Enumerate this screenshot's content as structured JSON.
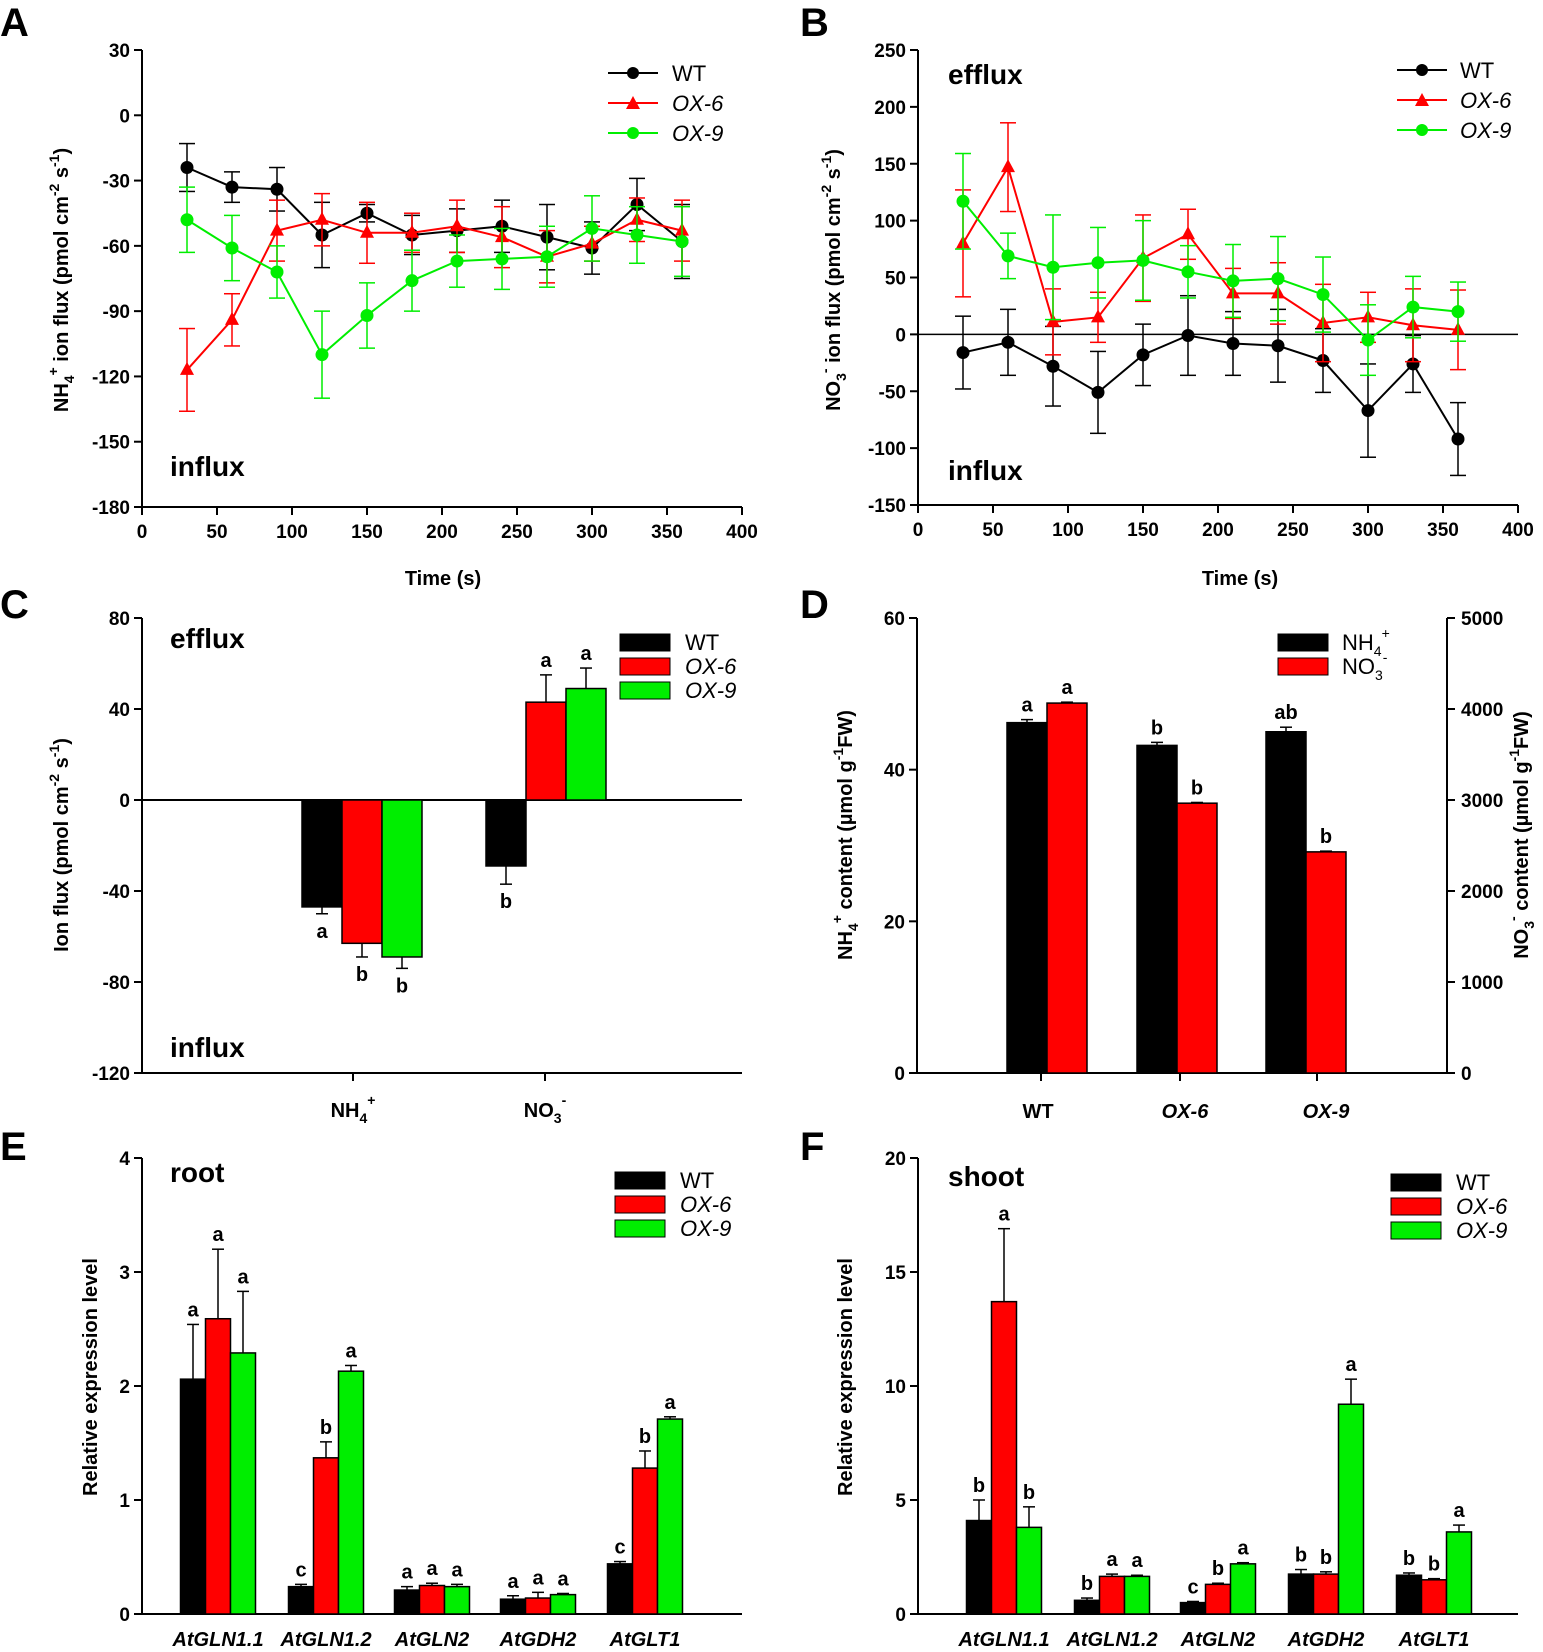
{
  "chart_data": [
    {
      "panel": "A",
      "type": "line",
      "xlabel": "Time (s)",
      "ylabel": "NH4+ ion flux (pmol cm-2 s-1)",
      "ylabel_parts": {
        "a": "NH",
        "b": "4",
        "c": "+",
        "d": " ion flux (pmol cm",
        "e": "-2",
        "f": " s",
        "g": "-1",
        "h": ")"
      },
      "xlim": [
        0,
        400
      ],
      "ylim": [
        -180,
        30
      ],
      "xticks": [
        0,
        50,
        100,
        150,
        200,
        250,
        300,
        350,
        400
      ],
      "yticks": [
        -180,
        -150,
        -120,
        -90,
        -60,
        -30,
        0,
        30
      ],
      "annotations": [
        "influx"
      ],
      "x": [
        30,
        60,
        90,
        120,
        150,
        180,
        210,
        240,
        270,
        300,
        330,
        360
      ],
      "series": [
        {
          "name": "WT",
          "color": "#000000",
          "marker": "circle",
          "values": [
            -24,
            -33,
            -34,
            -55,
            -45,
            -55,
            -53,
            -51,
            -56,
            -61,
            -41,
            -58
          ],
          "errors": [
            11,
            7,
            10,
            15,
            4,
            9,
            10,
            12,
            15,
            12,
            12,
            17
          ]
        },
        {
          "name": "OX-6",
          "color": "#ff0000",
          "marker": "triangle",
          "values": [
            -117,
            -94,
            -53,
            -48,
            -54,
            -54,
            -51,
            -56,
            -65,
            -59,
            -48,
            -53
          ],
          "errors": [
            19,
            12,
            14,
            12,
            14,
            9,
            12,
            14,
            12,
            8,
            10,
            14
          ]
        },
        {
          "name": "OX-9",
          "color": "#00ee00",
          "marker": "circle",
          "values": [
            -48,
            -61,
            -72,
            -110,
            -92,
            -76,
            -67,
            -66,
            -65,
            -52,
            -55,
            -58
          ],
          "errors": [
            15,
            15,
            12,
            20,
            15,
            14,
            12,
            14,
            14,
            15,
            13,
            16
          ]
        }
      ]
    },
    {
      "panel": "B",
      "type": "line",
      "xlabel": "Time (s)",
      "ylabel": "NO3- ion flux (pmol cm-2 s-1)",
      "ylabel_parts": {
        "a": "NO",
        "b": "3",
        "c": "-",
        "d": " ion flux (pmol cm",
        "e": "-2",
        "f": " s",
        "g": "-1",
        "h": ")"
      },
      "xlim": [
        0,
        400
      ],
      "ylim": [
        -150,
        250
      ],
      "xticks": [
        0,
        50,
        100,
        150,
        200,
        250,
        300,
        350,
        400
      ],
      "yticks": [
        -150,
        -100,
        -50,
        0,
        50,
        100,
        150,
        200,
        250
      ],
      "annotations": [
        "efflux",
        "influx"
      ],
      "x": [
        30,
        60,
        90,
        120,
        150,
        180,
        210,
        240,
        270,
        300,
        330,
        360
      ],
      "series": [
        {
          "name": "WT",
          "color": "#000000",
          "marker": "circle",
          "values": [
            -16,
            -7,
            -28,
            -51,
            -18,
            -1,
            -8,
            -10,
            -23,
            -67,
            -26,
            -92
          ],
          "errors": [
            32,
            29,
            35,
            36,
            27,
            35,
            28,
            32,
            28,
            41,
            25,
            32
          ]
        },
        {
          "name": "OX-6",
          "color": "#ff0000",
          "marker": "triangle",
          "values": [
            80,
            147,
            11,
            15,
            67,
            88,
            36,
            36,
            10,
            15,
            8,
            4
          ],
          "errors": [
            47,
            39,
            29,
            22,
            38,
            22,
            22,
            27,
            34,
            22,
            32,
            35
          ]
        },
        {
          "name": "OX-9",
          "color": "#00ee00",
          "marker": "circle",
          "values": [
            117,
            69,
            59,
            63,
            65,
            55,
            47,
            49,
            35,
            -5,
            24,
            20
          ],
          "errors": [
            42,
            20,
            46,
            31,
            35,
            23,
            32,
            37,
            33,
            31,
            27,
            26
          ]
        }
      ]
    },
    {
      "panel": "C",
      "type": "bar",
      "ylabel": "Ion flux (pmol cm-2 s-1)",
      "ylabel_parts": {
        "a": "Ion flux (pmol cm",
        "b": "-2",
        "c": " s",
        "d": "-1",
        "e": ")"
      },
      "ylim": [
        -120,
        80
      ],
      "yticks": [
        -120,
        -80,
        -40,
        0,
        40,
        80
      ],
      "categories": [
        "NH4+",
        "NO3-"
      ],
      "category_parts": [
        {
          "base": "NH",
          "sub": "4",
          "sup": "+"
        },
        {
          "base": "NO",
          "sub": "3",
          "sup": "-"
        }
      ],
      "annotations": [
        "efflux",
        "influx"
      ],
      "series": [
        {
          "name": "WT",
          "color": "#000000",
          "values": [
            -47,
            -29
          ],
          "errors": [
            3,
            8
          ],
          "sig": [
            "a",
            "b"
          ]
        },
        {
          "name": "OX-6",
          "color": "#ff0000",
          "values": [
            -63,
            43
          ],
          "errors": [
            6,
            12
          ],
          "sig": [
            "b",
            "a"
          ]
        },
        {
          "name": "OX-9",
          "color": "#00ee00",
          "values": [
            -69,
            49
          ],
          "errors": [
            5,
            9
          ],
          "sig": [
            "b",
            "a"
          ]
        }
      ]
    },
    {
      "panel": "D",
      "type": "bar",
      "ylabel": "NH4+ content (µmol g-1FW)",
      "ylabel_parts": {
        "a": "NH",
        "b": "4",
        "c": "+",
        "d": " content (µmol  g",
        "e": "-1",
        "f": "FW)"
      },
      "ylabel_right": "NO3- content (µmol g-1FW)",
      "ylabel_right_parts": {
        "a": "NO",
        "b": "3",
        "c": "-",
        "d": " content (µmol  g",
        "e": "-1",
        "f": "FW)"
      },
      "ylim": [
        0,
        60
      ],
      "ylim_right": [
        0,
        5000
      ],
      "yticks": [
        0,
        20,
        40,
        60
      ],
      "yticks_right": [
        0,
        1000,
        2000,
        3000,
        4000,
        5000
      ],
      "categories": [
        "WT",
        "OX-6",
        "OX-9"
      ],
      "legend_parts": [
        {
          "base": "NH",
          "sub": "4",
          "sup": "+"
        },
        {
          "base": "NO",
          "sub": "3",
          "sup": "-"
        }
      ],
      "series": [
        {
          "name": "NH4+",
          "axis": "left",
          "color": "#000000",
          "values": [
            46.2,
            43.2,
            45.0
          ],
          "errors": [
            0.4,
            0.4,
            0.6
          ],
          "sig": [
            "a",
            "b",
            "ab"
          ]
        },
        {
          "name": "NO3-",
          "axis": "right",
          "color": "#ff0000",
          "values": [
            4065,
            2965,
            2430
          ],
          "errors": [
            10,
            8,
            8
          ],
          "sig": [
            "a",
            "b",
            "b"
          ]
        }
      ]
    },
    {
      "panel": "E",
      "type": "bar",
      "title": "root",
      "ylabel": "Relative expression level",
      "ylim": [
        0,
        4
      ],
      "yticks": [
        0,
        1,
        2,
        3,
        4
      ],
      "categories": [
        "AtGLN1.1",
        "AtGLN1.2",
        "AtGLN2",
        "AtGDH2",
        "AtGLT1"
      ],
      "series": [
        {
          "name": "WT",
          "color": "#000000",
          "values": [
            2.06,
            0.24,
            0.21,
            0.13,
            0.44
          ],
          "errors": [
            0.48,
            0.02,
            0.03,
            0.03,
            0.02
          ],
          "sig": [
            "a",
            "c",
            "a",
            "a",
            "c"
          ]
        },
        {
          "name": "OX-6",
          "color": "#ff0000",
          "values": [
            2.59,
            1.37,
            0.25,
            0.14,
            1.28
          ],
          "errors": [
            0.61,
            0.14,
            0.02,
            0.05,
            0.15
          ],
          "sig": [
            "a",
            "b",
            "a",
            "a",
            "b"
          ]
        },
        {
          "name": "OX-9",
          "color": "#00ee00",
          "values": [
            2.29,
            2.13,
            0.24,
            0.17,
            1.71
          ],
          "errors": [
            0.54,
            0.05,
            0.02,
            0.01,
            0.02
          ],
          "sig": [
            "a",
            "a",
            "a",
            "a",
            "a"
          ]
        }
      ]
    },
    {
      "panel": "F",
      "type": "bar",
      "title": "shoot",
      "ylabel": "Relative expression level",
      "ylim": [
        0,
        20
      ],
      "yticks": [
        0,
        5,
        10,
        15,
        20
      ],
      "categories": [
        "AtGLN1.1",
        "AtGLN1.2",
        "AtGLN2",
        "AtGDH2",
        "AtGLT1"
      ],
      "series": [
        {
          "name": "WT",
          "color": "#000000",
          "values": [
            4.1,
            0.6,
            0.5,
            1.75,
            1.7
          ],
          "errors": [
            0.9,
            0.1,
            0.05,
            0.2,
            0.1
          ],
          "sig": [
            "b",
            "b",
            "c",
            "b",
            "b"
          ]
        },
        {
          "name": "OX-6",
          "color": "#ff0000",
          "values": [
            13.7,
            1.65,
            1.3,
            1.75,
            1.5
          ],
          "errors": [
            3.2,
            0.1,
            0.05,
            0.1,
            0.05
          ],
          "sig": [
            "a",
            "a",
            "b",
            "b",
            "b"
          ]
        },
        {
          "name": "OX-9",
          "color": "#00ee00",
          "values": [
            3.8,
            1.65,
            2.2,
            9.2,
            3.6
          ],
          "errors": [
            0.9,
            0.05,
            0.05,
            1.1,
            0.3
          ],
          "sig": [
            "b",
            "a",
            "a",
            "a",
            "a"
          ]
        }
      ]
    }
  ]
}
